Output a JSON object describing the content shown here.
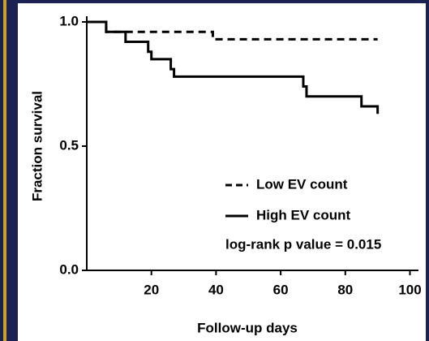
{
  "chart_data": {
    "type": "line",
    "ylabel": "Fraction survival",
    "xlabel": "Follow-up days",
    "annotation": "log-rank p value = 0.015",
    "xlim": [
      0,
      100
    ],
    "ylim": [
      0,
      1
    ],
    "xticks": [
      20,
      40,
      60,
      80,
      100
    ],
    "yticks": [
      {
        "value": 0,
        "label": "0.0"
      },
      {
        "value": 0.5,
        "label": "0.5"
      },
      {
        "value": 1,
        "label": "1.0"
      }
    ],
    "series": [
      {
        "name": "Low EV count",
        "color": "#000000",
        "linestyle": "dashed",
        "x": [
          0,
          6,
          6,
          39,
          39,
          90
        ],
        "values": [
          1,
          1,
          0.96,
          0.96,
          0.93,
          0.93
        ]
      },
      {
        "name": "High EV count",
        "color": "#000000",
        "linestyle": "solid",
        "x": [
          0,
          6,
          6,
          12,
          12,
          19,
          19,
          20,
          20,
          26,
          26,
          27,
          27,
          67,
          67,
          68,
          68,
          85,
          85,
          90,
          90
        ],
        "values": [
          1,
          1,
          0.96,
          0.96,
          0.92,
          0.92,
          0.88,
          0.88,
          0.85,
          0.85,
          0.81,
          0.81,
          0.78,
          0.78,
          0.74,
          0.74,
          0.7,
          0.7,
          0.66,
          0.66,
          0.63
        ]
      }
    ]
  }
}
